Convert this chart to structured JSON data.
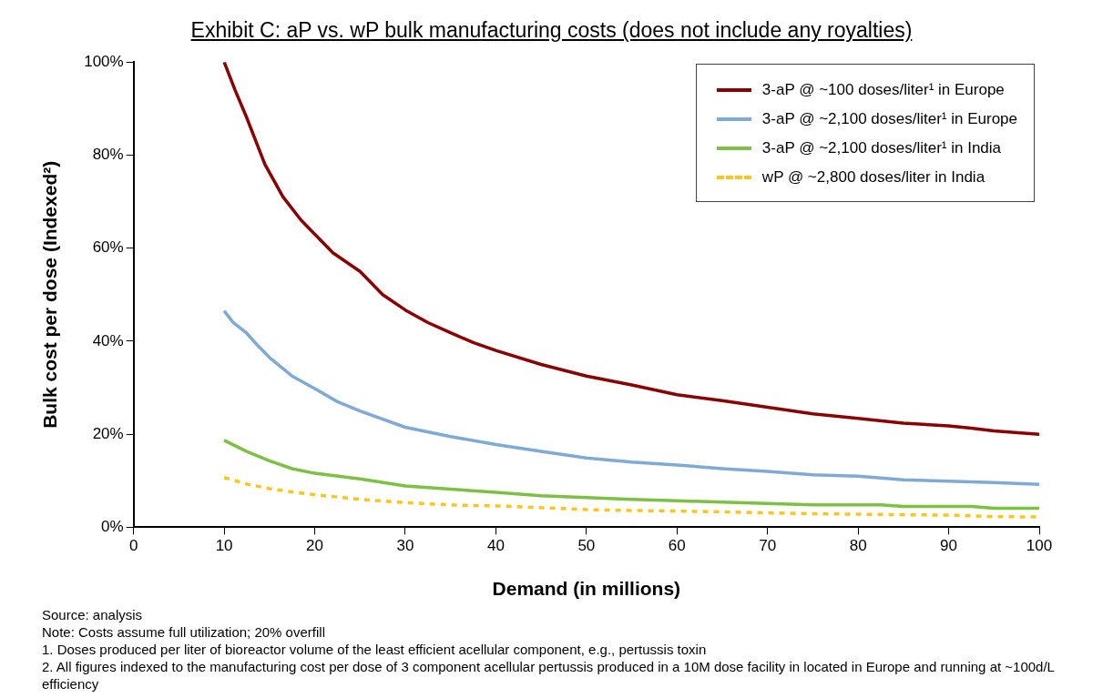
{
  "chart_data": {
    "type": "line",
    "title": "Exhibit C: aP vs. wP bulk manufacturing costs (does not include any royalties)",
    "xlabel": "Demand (in millions)",
    "ylabel": "Bulk cost per dose (Indexed²)",
    "xlim": [
      0,
      100
    ],
    "xticks": [
      0,
      10,
      20,
      30,
      40,
      50,
      60,
      70,
      80,
      90,
      100
    ],
    "ylim": [
      0,
      100
    ],
    "yticks": [
      {
        "value": 0,
        "label": "0%"
      },
      {
        "value": 20,
        "label": "20%"
      },
      {
        "value": 40,
        "label": "40%"
      },
      {
        "value": 60,
        "label": "60%"
      },
      {
        "value": 80,
        "label": "80%"
      },
      {
        "value": 100,
        "label": "100%"
      }
    ],
    "grid": false,
    "legend": "top right",
    "marker": "none",
    "series": [
      {
        "name": "3-aP @ ~100 doses/liter¹ in Europe",
        "color": "#8b0000",
        "line_style": "solid",
        "x": [
          10,
          11.2,
          12.5,
          14.5,
          16.5,
          18.5,
          20,
          22,
          25,
          27.5,
          30,
          32.5,
          35,
          37.5,
          40,
          45,
          50,
          55,
          60,
          65,
          70,
          75,
          80,
          85,
          90,
          92.5,
          95,
          100
        ],
        "values": [
          100,
          94,
          88,
          78,
          71,
          66,
          63,
          59,
          55,
          50,
          46.7,
          44,
          41.8,
          39.7,
          38,
          35,
          32.5,
          30.6,
          28.5,
          27.2,
          25.8,
          24.4,
          23.4,
          22.4,
          21.8,
          21.3,
          20.7,
          20
        ]
      },
      {
        "name": "3-aP @ ~2,100 doses/liter¹ in Europe",
        "color": "#7eaad6",
        "line_style": "solid",
        "x": [
          10,
          11,
          12.5,
          13.5,
          15,
          17.5,
          20,
          22.5,
          25,
          30,
          35,
          40,
          45,
          50,
          55,
          60,
          65,
          70,
          75,
          80,
          85,
          90,
          95,
          100
        ],
        "values": [
          46.5,
          44,
          41.7,
          39.5,
          36.5,
          32.5,
          29.8,
          27,
          25,
          21.5,
          19.5,
          17.8,
          16.3,
          14.9,
          14,
          13.4,
          12.6,
          12,
          11.3,
          11,
          10.2,
          9.9,
          9.6,
          9.2
        ]
      },
      {
        "name": "3-aP @ ~2,100 doses/liter¹ in India",
        "color": "#7dc142",
        "line_style": "solid",
        "x": [
          10,
          12.5,
          15,
          17.5,
          20,
          25,
          30,
          35,
          40,
          45,
          50,
          55,
          60,
          65,
          70,
          75,
          80,
          82.5,
          85,
          92.5,
          95,
          100
        ],
        "values": [
          18.7,
          16.3,
          14.3,
          12.6,
          11.6,
          10.4,
          8.9,
          8.2,
          7.5,
          6.8,
          6.4,
          6,
          5.7,
          5.4,
          5.1,
          4.8,
          4.8,
          4.8,
          4.5,
          4.5,
          4.1,
          4.1
        ]
      },
      {
        "name": "wP @ ~2,800 doses/liter in India",
        "color": "#ffc61a",
        "line_style": "dashed",
        "x": [
          10,
          12.5,
          15,
          17.5,
          20,
          25,
          30,
          35,
          40,
          45,
          50,
          55,
          60,
          65,
          70,
          75,
          80,
          85,
          90,
          95,
          100
        ],
        "values": [
          10.7,
          9.3,
          8.3,
          7.6,
          7,
          6,
          5.3,
          4.8,
          4.6,
          4.2,
          3.8,
          3.6,
          3.5,
          3.3,
          3.1,
          2.9,
          2.8,
          2.7,
          2.6,
          2.3,
          2.2
        ]
      }
    ],
    "annotations": [
      "Source: analysis",
      "Note: Costs assume full utilization; 20% overfill",
      "1. Doses produced per liter of bioreactor volume of the least efficient acellular component, e.g., pertussis toxin",
      "2. All figures indexed to the manufacturing cost per dose of 3 component acellular pertussis produced in a 10M dose facility in located in Europe and running at ~100d/L efficiency"
    ]
  }
}
